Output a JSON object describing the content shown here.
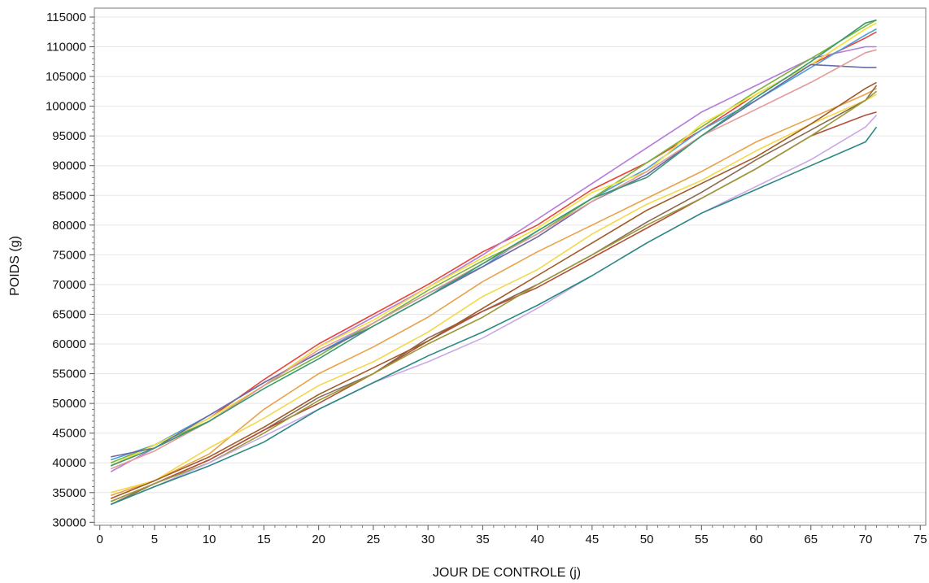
{
  "chart_data": {
    "type": "line",
    "title": "",
    "xlabel": "JOUR DE CONTROLE (j)",
    "ylabel": "POIDS (g)",
    "xlim": [
      -0.5,
      75.5
    ],
    "ylim": [
      29500,
      116500
    ],
    "x_ticks": [
      0,
      5,
      10,
      15,
      20,
      25,
      30,
      35,
      40,
      45,
      50,
      55,
      60,
      65,
      70,
      75
    ],
    "y_ticks": [
      30000,
      35000,
      40000,
      45000,
      50000,
      55000,
      60000,
      65000,
      70000,
      75000,
      80000,
      85000,
      90000,
      95000,
      100000,
      105000,
      110000,
      115000
    ],
    "grid": "horizontal",
    "x": [
      1,
      5,
      10,
      15,
      20,
      25,
      30,
      35,
      40,
      45,
      50,
      55,
      60,
      65,
      70,
      71
    ],
    "series": [
      {
        "color": "#e8443a",
        "values": [
          39500,
          43000,
          47500,
          54000,
          60000,
          65000,
          70000,
          75500,
          80000,
          86000,
          90500,
          96000,
          102000,
          107000,
          111500,
          112500
        ]
      },
      {
        "color": "#b57bd9",
        "values": [
          38500,
          42500,
          47000,
          53000,
          59500,
          64500,
          69500,
          75000,
          81000,
          87000,
          93000,
          99000,
          103500,
          108000,
          110000,
          110000
        ]
      },
      {
        "color": "#4a9fd8",
        "values": [
          40500,
          43000,
          48000,
          53500,
          58500,
          63500,
          68500,
          73000,
          79000,
          84500,
          89500,
          96000,
          101000,
          106500,
          112000,
          113000
        ]
      },
      {
        "color": "#7ab33c",
        "values": [
          40000,
          43000,
          47000,
          53000,
          58000,
          63500,
          69000,
          74000,
          78500,
          84500,
          90500,
          96500,
          102500,
          108000,
          113500,
          114500
        ]
      },
      {
        "color": "#f2e23b",
        "values": [
          39500,
          43000,
          47500,
          53000,
          59500,
          64000,
          69500,
          74500,
          79500,
          85500,
          89000,
          97000,
          102000,
          107000,
          113000,
          114000
        ]
      },
      {
        "color": "#6a6aa8",
        "values": [
          41000,
          42500,
          48000,
          53500,
          58500,
          63000,
          68000,
          73000,
          78000,
          84000,
          88500,
          95000,
          101000,
          107000,
          106500,
          106500
        ]
      },
      {
        "color": "#e39a9a",
        "values": [
          39000,
          42000,
          47000,
          53000,
          59000,
          63500,
          68500,
          73500,
          78500,
          84000,
          89000,
          95000,
          99500,
          104000,
          109000,
          109500
        ]
      },
      {
        "color": "#3a9a6e",
        "values": [
          39500,
          42500,
          47000,
          52500,
          57500,
          63000,
          68000,
          73500,
          79000,
          84500,
          88000,
          95000,
          101500,
          107500,
          114000,
          114500
        ]
      },
      {
        "color": "#e8a34a",
        "values": [
          34500,
          37000,
          41500,
          49000,
          55000,
          59500,
          64500,
          70500,
          75500,
          80000,
          84500,
          89000,
          94000,
          98000,
          102000,
          103000
        ]
      },
      {
        "color": "#f5d84a",
        "values": [
          35000,
          37000,
          42500,
          47500,
          53000,
          57000,
          62000,
          68000,
          72500,
          78500,
          83500,
          87500,
          92500,
          97000,
          101000,
          102000
        ]
      },
      {
        "color": "#8b6a52",
        "values": [
          33000,
          36500,
          40500,
          45500,
          51000,
          55000,
          61000,
          65500,
          70000,
          75000,
          80500,
          85500,
          91000,
          96000,
          101000,
          103500
        ]
      },
      {
        "color": "#b0503c",
        "values": [
          33500,
          36500,
          40500,
          45500,
          50000,
          55000,
          60500,
          65500,
          69500,
          74500,
          79500,
          84500,
          89500,
          95000,
          98500,
          99000
        ]
      },
      {
        "color": "#a05a28",
        "values": [
          34000,
          37000,
          41000,
          46000,
          51500,
          56000,
          60500,
          66000,
          71500,
          77000,
          82500,
          87000,
          91500,
          97000,
          103000,
          104000
        ]
      },
      {
        "color": "#9a9a3a",
        "values": [
          33500,
          36500,
          40000,
          45000,
          50500,
          55000,
          60000,
          64500,
          70000,
          75000,
          80000,
          84500,
          89500,
          95000,
          101000,
          102500
        ]
      },
      {
        "color": "#c9a8e8",
        "values": [
          33000,
          36000,
          40000,
          44500,
          49000,
          53500,
          57000,
          61000,
          66000,
          71500,
          77000,
          82000,
          86500,
          91000,
          96500,
          98500
        ]
      },
      {
        "color": "#2a8a82",
        "values": [
          33000,
          36000,
          39500,
          43500,
          49000,
          53500,
          58000,
          62000,
          66500,
          71500,
          77000,
          82000,
          86000,
          90000,
          94000,
          96500
        ]
      }
    ]
  }
}
